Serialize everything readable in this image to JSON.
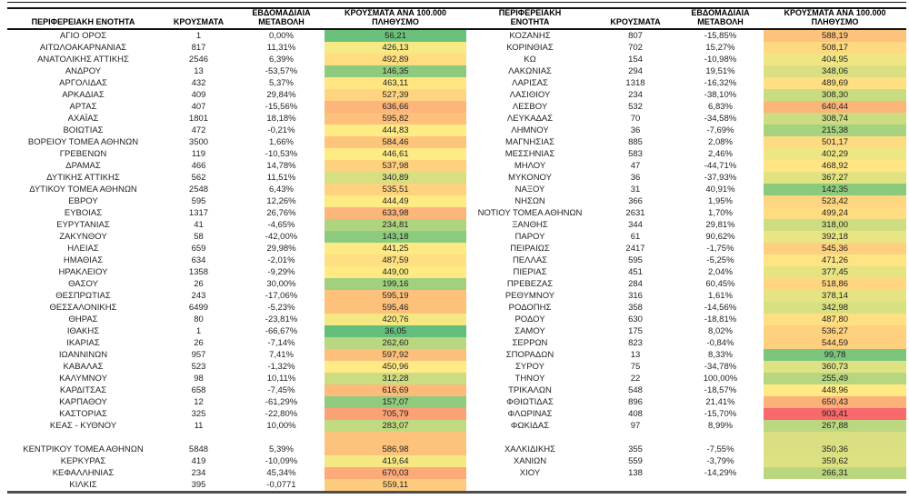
{
  "chart_data": {
    "type": "table",
    "heatmap": {
      "column": "ΚΡΟΥΣΜΑΤΑ ΑΝΑ 100.000 ΠΛΗΘΥΣΜΟ",
      "min_color": "#63BE7B",
      "mid_color": "#FFEB84",
      "max_color": "#F8696B"
    },
    "tables": [
      {
        "headers": {
          "region": "ΠΕΡΙΦΕΡΕΙΑΚΗ ΕΝΟΤΗΤΑ",
          "cases": "ΚΡΟΥΣΜΑΤΑ",
          "change": "ΕΒΔΟΜΑΔΙΑΙΑ ΜΕΤΑΒΟΛΗ",
          "rate": "ΚΡΟΥΣΜΑΤΑ ΑΝΑ 100.000 ΠΛΗΘΥΣΜΟ"
        },
        "rows": [
          [
            "ΑΓΙΟ ΟΡΟΣ",
            "1",
            "0,00%",
            "56,21"
          ],
          [
            "ΑΙΤΩΛΟΑΚΑΡΝΑΝΙΑΣ",
            "817",
            "11,31%",
            "426,13"
          ],
          [
            "ΑΝΑΤΟΛΙΚΗΣ ΑΤΤΙΚΗΣ",
            "2546",
            "6,39%",
            "492,89"
          ],
          [
            "ΑΝΔΡΟΥ",
            "13",
            "-53,57%",
            "146,35"
          ],
          [
            "ΑΡΓΟΛΙΔΑΣ",
            "432",
            "5,37%",
            "463,11"
          ],
          [
            "ΑΡΚΑΔΙΑΣ",
            "409",
            "29,84%",
            "527,39"
          ],
          [
            "ΑΡΤΑΣ",
            "407",
            "-15,56%",
            "636,66"
          ],
          [
            "ΑΧΑΪΑΣ",
            "1801",
            "18,18%",
            "595,82"
          ],
          [
            "ΒΟΙΩΤΙΑΣ",
            "472",
            "-0,21%",
            "444,83"
          ],
          [
            "ΒΟΡΕΙΟΥ ΤΟΜΕΑ ΑΘΗΝΩΝ",
            "3500",
            "1,66%",
            "584,46"
          ],
          [
            "ΓΡΕΒΕΝΩΝ",
            "119",
            "-10,53%",
            "446,61"
          ],
          [
            "ΔΡΑΜΑΣ",
            "466",
            "14,78%",
            "537,98"
          ],
          [
            "ΔΥΤΙΚΗΣ ΑΤΤΙΚΗΣ",
            "562",
            "11,51%",
            "340,89"
          ],
          [
            "ΔΥΤΙΚΟΥ ΤΟΜΕΑ ΑΘΗΝΩΝ",
            "2548",
            "6,43%",
            "535,51"
          ],
          [
            "ΕΒΡΟΥ",
            "595",
            "12,26%",
            "444,49"
          ],
          [
            "ΕΥΒΟΙΑΣ",
            "1317",
            "26,76%",
            "633,98"
          ],
          [
            "ΕΥΡΥΤΑΝΙΑΣ",
            "41",
            "-4,65%",
            "234,81"
          ],
          [
            "ΖΑΚΥΝΘΟΥ",
            "58",
            "-42,00%",
            "143,18"
          ],
          [
            "ΗΛΕΙΑΣ",
            "659",
            "29,98%",
            "441,25"
          ],
          [
            "ΗΜΑΘΙΑΣ",
            "634",
            "-2,01%",
            "487,59"
          ],
          [
            "ΗΡΑΚΛΕΙΟΥ",
            "1358",
            "-9,29%",
            "449,00"
          ],
          [
            "ΘΑΣΟΥ",
            "26",
            "30,00%",
            "199,16"
          ],
          [
            "ΘΕΣΠΡΩΤΙΑΣ",
            "243",
            "-17,06%",
            "595,19"
          ],
          [
            "ΘΕΣΣΑΛΟΝΙΚΗΣ",
            "6499",
            "-5,23%",
            "595,46"
          ],
          [
            "ΘΗΡΑΣ",
            "80",
            "-23,81%",
            "420,76"
          ],
          [
            "ΙΘΑΚΗΣ",
            "1",
            "-66,67%",
            "36,05"
          ],
          [
            "ΙΚΑΡΙΑΣ",
            "26",
            "-7,14%",
            "262,60"
          ],
          [
            "ΙΩΑΝΝΙΝΩΝ",
            "957",
            "7,41%",
            "597,92"
          ],
          [
            "ΚΑΒΑΛΑΣ",
            "523",
            "-1,32%",
            "450,96"
          ],
          [
            "ΚΑΛΥΜΝΟΥ",
            "98",
            "10,11%",
            "312,28"
          ],
          [
            "ΚΑΡΔΙΤΣΑΣ",
            "658",
            "-7,45%",
            "616,69"
          ],
          [
            "ΚΑΡΠΑΘΟΥ",
            "12",
            "-61,29%",
            "157,07"
          ],
          [
            "ΚΑΣΤΟΡΙΑΣ",
            "325",
            "-22,80%",
            "705,79"
          ],
          [
            "ΚΕΑΣ - ΚΥΘΝΟΥ",
            "11",
            "10,00%",
            "283,07"
          ],
          [
            null,
            null,
            null,
            null,
            586.98
          ],
          [
            "ΚΕΝΤΡΙΚΟΥ ΤΟΜΕΑ ΑΘΗΝΩΝ",
            "5848",
            "5,39%",
            "586,98"
          ],
          [
            "ΚΕΡΚΥΡΑΣ",
            "419",
            "-10,09%",
            "419,64"
          ],
          [
            "ΚΕΦΑΛΛΗΝΙΑΣ",
            "234",
            "45,34%",
            "670,03"
          ],
          [
            "ΚΙΛΚΙΣ",
            "395",
            "-0,0771",
            "559,11"
          ]
        ]
      },
      {
        "headers": {
          "region": "ΠΕΡΙΦΕΡΕΙΑΚΗ ΕΝΟΤΗΤΑ",
          "cases": "ΚΡΟΥΣΜΑΤΑ",
          "change": "ΕΒΔΟΜΑΔΙΑΙΑ ΜΕΤΑΒΟΛΗ",
          "rate": "ΚΡΟΥΣΜΑΤΑ ΑΝΑ 100.000 ΠΛΗΘΥΣΜΟ"
        },
        "rows": [
          [
            "ΚΟΖΑΝΗΣ",
            "807",
            "-15,85%",
            "588,19"
          ],
          [
            "ΚΟΡΙΝΘΙΑΣ",
            "702",
            "15,27%",
            "508,17"
          ],
          [
            "ΚΩ",
            "154",
            "-10,98%",
            "404,95"
          ],
          [
            "ΛΑΚΩΝΙΑΣ",
            "294",
            "19,51%",
            "348,06"
          ],
          [
            "ΛΑΡΙΣΑΣ",
            "1318",
            "-16,32%",
            "489,69"
          ],
          [
            "ΛΑΣΙΘΙΟΥ",
            "234",
            "-38,10%",
            "308,30"
          ],
          [
            "ΛΕΣΒΟΥ",
            "532",
            "6,83%",
            "640,44"
          ],
          [
            "ΛΕΥΚΑΔΑΣ",
            "70",
            "-34,58%",
            "308,74"
          ],
          [
            "ΛΗΜΝΟΥ",
            "36",
            "-7,69%",
            "215,38"
          ],
          [
            "ΜΑΓΝΗΣΙΑΣ",
            "885",
            "2,08%",
            "501,17"
          ],
          [
            "ΜΕΣΣΗΝΙΑΣ",
            "583",
            "2,46%",
            "402,29"
          ],
          [
            "ΜΗΛΟΥ",
            "47",
            "-44,71%",
            "468,92"
          ],
          [
            "ΜΥΚΟΝΟΥ",
            "36",
            "-37,93%",
            "367,27"
          ],
          [
            "ΝΑΞΟΥ",
            "31",
            "40,91%",
            "142,35"
          ],
          [
            "ΝΗΣΩΝ",
            "366",
            "1,95%",
            "523,42"
          ],
          [
            "ΝΟΤΙΟΥ ΤΟΜΕΑ ΑΘΗΝΩΝ",
            "2631",
            "1,70%",
            "499,24"
          ],
          [
            "ΞΑΝΘΗΣ",
            "344",
            "29,81%",
            "318,00"
          ],
          [
            "ΠΑΡΟΥ",
            "61",
            "90,62%",
            "392,18"
          ],
          [
            "ΠΕΙΡΑΙΩΣ",
            "2417",
            "-1,75%",
            "545,36"
          ],
          [
            "ΠΕΛΛΑΣ",
            "595",
            "-5,25%",
            "471,26"
          ],
          [
            "ΠΙΕΡΙΑΣ",
            "451",
            "2,04%",
            "377,45"
          ],
          [
            "ΠΡΕΒΕΖΑΣ",
            "284",
            "60,45%",
            "518,86"
          ],
          [
            "ΡΕΘΥΜΝΟΥ",
            "316",
            "1,61%",
            "378,14"
          ],
          [
            "ΡΟΔΟΠΗΣ",
            "358",
            "-14,56%",
            "342,98"
          ],
          [
            "ΡΟΔΟΥ",
            "630",
            "-18,81%",
            "487,80"
          ],
          [
            "ΣΑΜΟΥ",
            "175",
            "8,02%",
            "536,27"
          ],
          [
            "ΣΕΡΡΩΝ",
            "823",
            "-0,84%",
            "544,59"
          ],
          [
            "ΣΠΟΡΑΔΩΝ",
            "13",
            "8,33%",
            "99,78"
          ],
          [
            "ΣΥΡΟΥ",
            "75",
            "-34,78%",
            "360,73"
          ],
          [
            "ΤΗΝΟΥ",
            "22",
            "100,00%",
            "255,49"
          ],
          [
            "ΤΡΙΚΑΛΩΝ",
            "548",
            "-18,57%",
            "448,96"
          ],
          [
            "ΦΘΙΩΤΙΔΑΣ",
            "896",
            "21,41%",
            "650,43"
          ],
          [
            "ΦΛΩΡΙΝΑΣ",
            "408",
            "-15,70%",
            "903,41"
          ],
          [
            "ΦΩΚΙΔΑΣ",
            "97",
            "8,99%",
            "267,88"
          ],
          [
            null,
            null,
            null,
            null,
            350.36
          ],
          [
            "ΧΑΛΚΙΔΙΚΗΣ",
            "355",
            "-7,55%",
            "350,36"
          ],
          [
            "ΧΑΝΙΩΝ",
            "559",
            "-3,79%",
            "359,62"
          ],
          [
            "ΧΙΟΥ",
            "138",
            "-14,29%",
            "266,31"
          ]
        ]
      }
    ]
  }
}
